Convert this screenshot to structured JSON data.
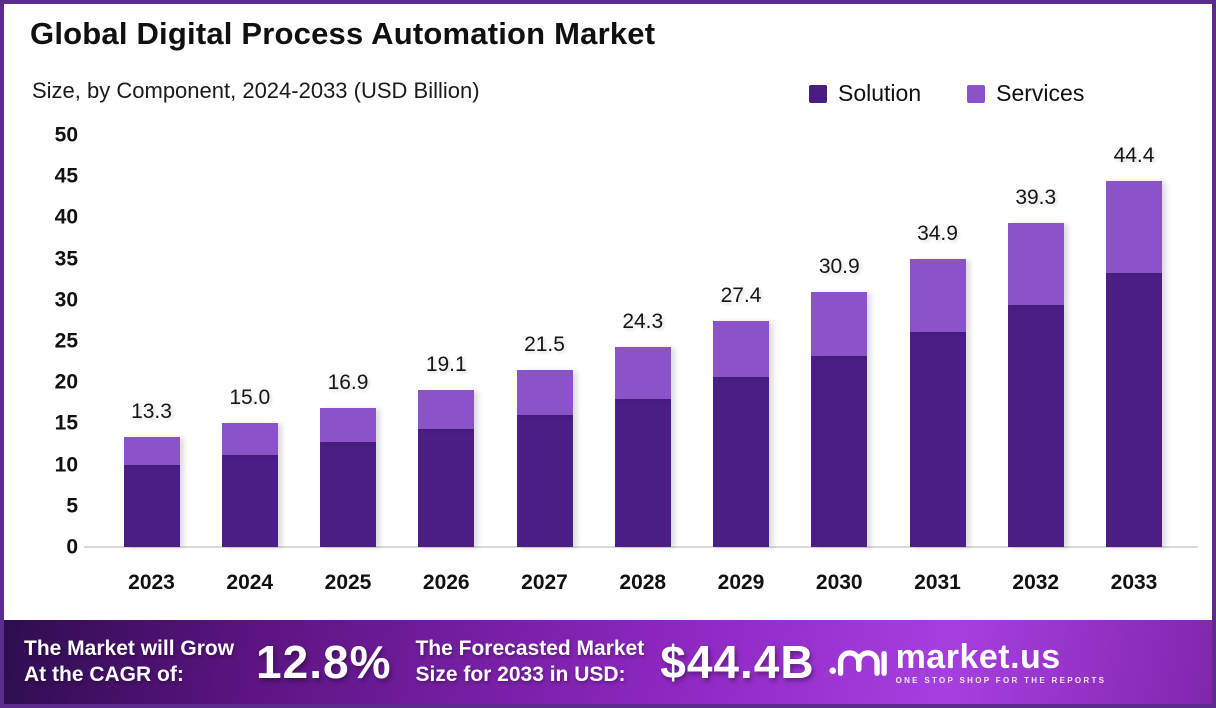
{
  "frame": {
    "border_color": "#5b2b8d",
    "background": "#ffffff"
  },
  "header": {
    "title": "Global Digital Process Automation Market",
    "subtitle": "Size, by Component, 2024-2033 (USD Billion)"
  },
  "legend": [
    {
      "label": "Solution",
      "color": "#4a1e80"
    },
    {
      "label": "Services",
      "color": "#8c52c8"
    }
  ],
  "chart_data": {
    "type": "bar",
    "stacked": true,
    "title": "Global Digital Process Automation Market",
    "subtitle": "Size, by Component, 2024-2033 (USD Billion)",
    "categories": [
      "2023",
      "2024",
      "2025",
      "2026",
      "2027",
      "2028",
      "2029",
      "2030",
      "2031",
      "2032",
      "2033"
    ],
    "series": [
      {
        "name": "Solution",
        "color": "#4a1e85",
        "values": [
          10.0,
          11.2,
          12.7,
          14.3,
          16.0,
          18.0,
          20.6,
          23.2,
          26.1,
          29.4,
          33.3
        ]
      },
      {
        "name": "Services",
        "color": "#8c52c8",
        "values": [
          3.3,
          3.8,
          4.2,
          4.8,
          5.5,
          6.3,
          6.8,
          7.7,
          8.8,
          9.9,
          11.1
        ]
      }
    ],
    "totals": [
      13.3,
      15.0,
      16.9,
      19.1,
      21.5,
      24.3,
      27.4,
      30.9,
      34.9,
      39.3,
      44.4
    ],
    "total_labels": [
      "13.3",
      "15.0",
      "16.9",
      "19.1",
      "21.5",
      "24.3",
      "27.4",
      "30.9",
      "34.9",
      "39.3",
      "44.4"
    ],
    "xlabel": "",
    "ylabel": "",
    "ylim": [
      0,
      50
    ],
    "yticks": [
      0,
      5,
      10,
      15,
      20,
      25,
      30,
      35,
      40,
      45,
      50
    ],
    "grid": false,
    "legend_position": "top-right"
  },
  "footer": {
    "cagr_label_line1": "The Market will Grow",
    "cagr_label_line2": "At the CAGR of:",
    "cagr_value": "12.8%",
    "forecast_label_line1": "The Forecasted Market",
    "forecast_label_line2": "Size for 2033 in USD:",
    "forecast_value": "$44.4B",
    "brand": {
      "name": "market.us",
      "tagline": "ONE STOP SHOP FOR THE REPORTS"
    }
  }
}
